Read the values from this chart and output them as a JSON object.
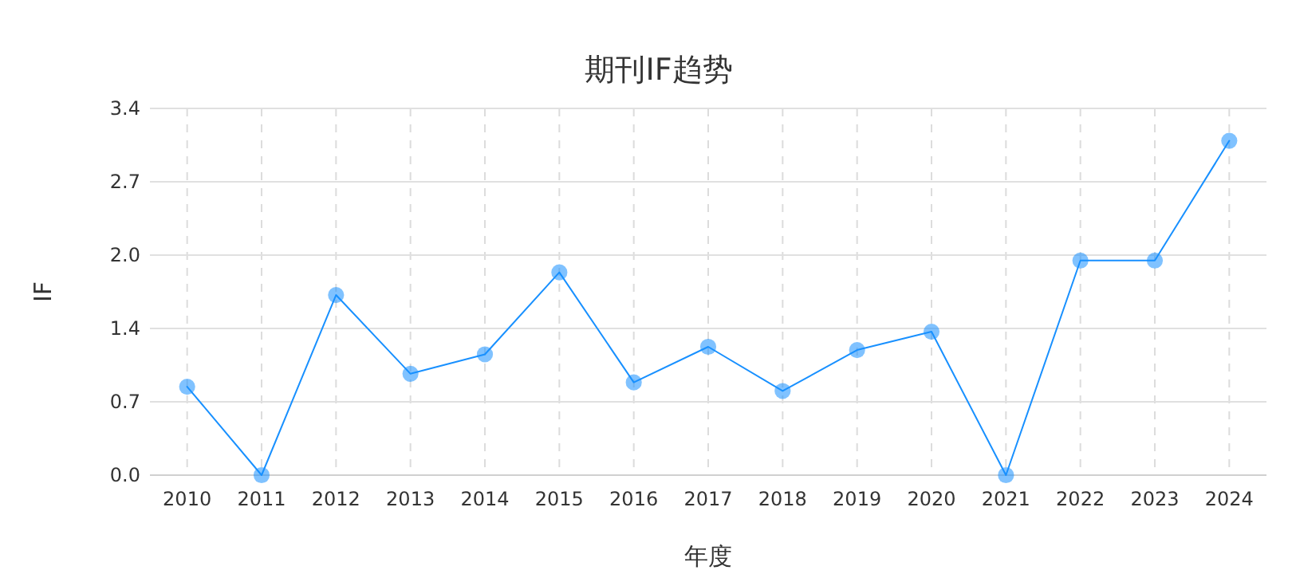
{
  "chart_data": {
    "type": "line",
    "title": "期刊IF趋势",
    "xlabel": "年度",
    "ylabel": "IF",
    "categories": [
      "2010",
      "2011",
      "2012",
      "2013",
      "2014",
      "2015",
      "2016",
      "2017",
      "2018",
      "2019",
      "2020",
      "2021",
      "2022",
      "2023",
      "2024"
    ],
    "series": [
      {
        "color": "#1890ff",
        "values": [
          0.82,
          0,
          1.67,
          0.94,
          1.12,
          1.88,
          0.86,
          1.19,
          0.78,
          1.16,
          1.33,
          0,
          1.99,
          1.99,
          3.1
        ]
      }
    ],
    "ylim": [
      0,
      3.4
    ],
    "yticks": [
      {
        "value": 0,
        "label": "0.0"
      },
      {
        "value": 0.68,
        "label": "0.7"
      },
      {
        "value": 1.36,
        "label": "1.4"
      },
      {
        "value": 2.04,
        "label": "2.0"
      },
      {
        "value": 2.72,
        "label": "2.7"
      },
      {
        "value": 3.4,
        "label": "3.4"
      }
    ],
    "grid": true,
    "marker": "circle",
    "line_style": "solid"
  }
}
